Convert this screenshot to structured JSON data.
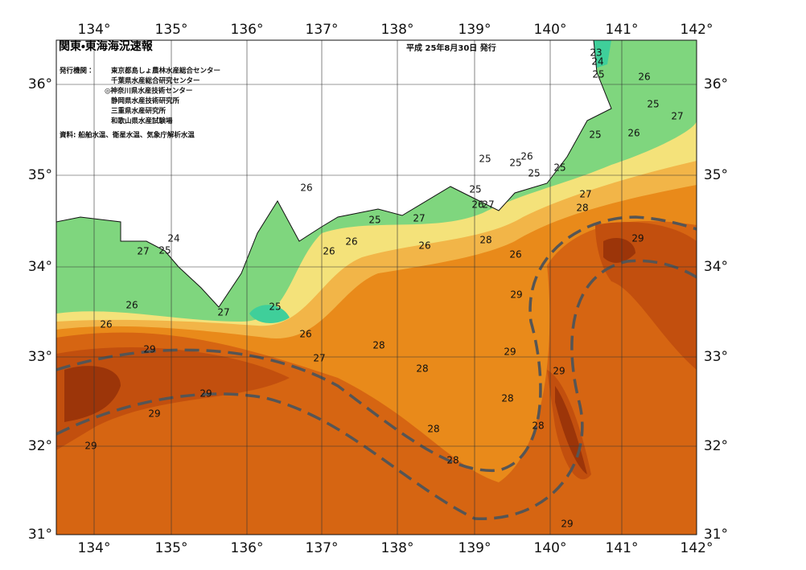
{
  "header": {
    "title": "関東・東海海況速報",
    "date": "平成 25年8月30日 発行"
  },
  "issuers": {
    "label": "発行機関：",
    "list": [
      "東京都島しょ農林水産総合センター",
      "千葉県水産総合研究センター",
      "◎神奈川県水産技術センター",
      "静岡県水産技術研究所",
      "三重県水産研究所",
      "和歌山県水産試験場"
    ]
  },
  "source": "資料: 船舶水温、衛星水温、気象庁解析水温",
  "longitudes": [
    "134°",
    "135°",
    "136°",
    "137°",
    "138°",
    "139°",
    "140°",
    "141°",
    "142°"
  ],
  "latitudes": [
    "36°",
    "35°",
    "34°",
    "33°",
    "32°",
    "31°"
  ],
  "contour_labels": [
    "23",
    "24",
    "25",
    "26",
    "25",
    "27",
    "25",
    "26",
    "25",
    "26",
    "25",
    "25",
    "25",
    "25",
    "26",
    "27",
    "27",
    "28",
    "26",
    "25",
    "27",
    "26",
    "26",
    "28",
    "26",
    "29",
    "24",
    "27",
    "25",
    "26",
    "29",
    "26",
    "25",
    "27",
    "26",
    "26",
    "29",
    "28",
    "29",
    "27",
    "28",
    "29",
    "29",
    "28",
    "29",
    "28",
    "28",
    "29",
    "28",
    "29"
  ]
}
